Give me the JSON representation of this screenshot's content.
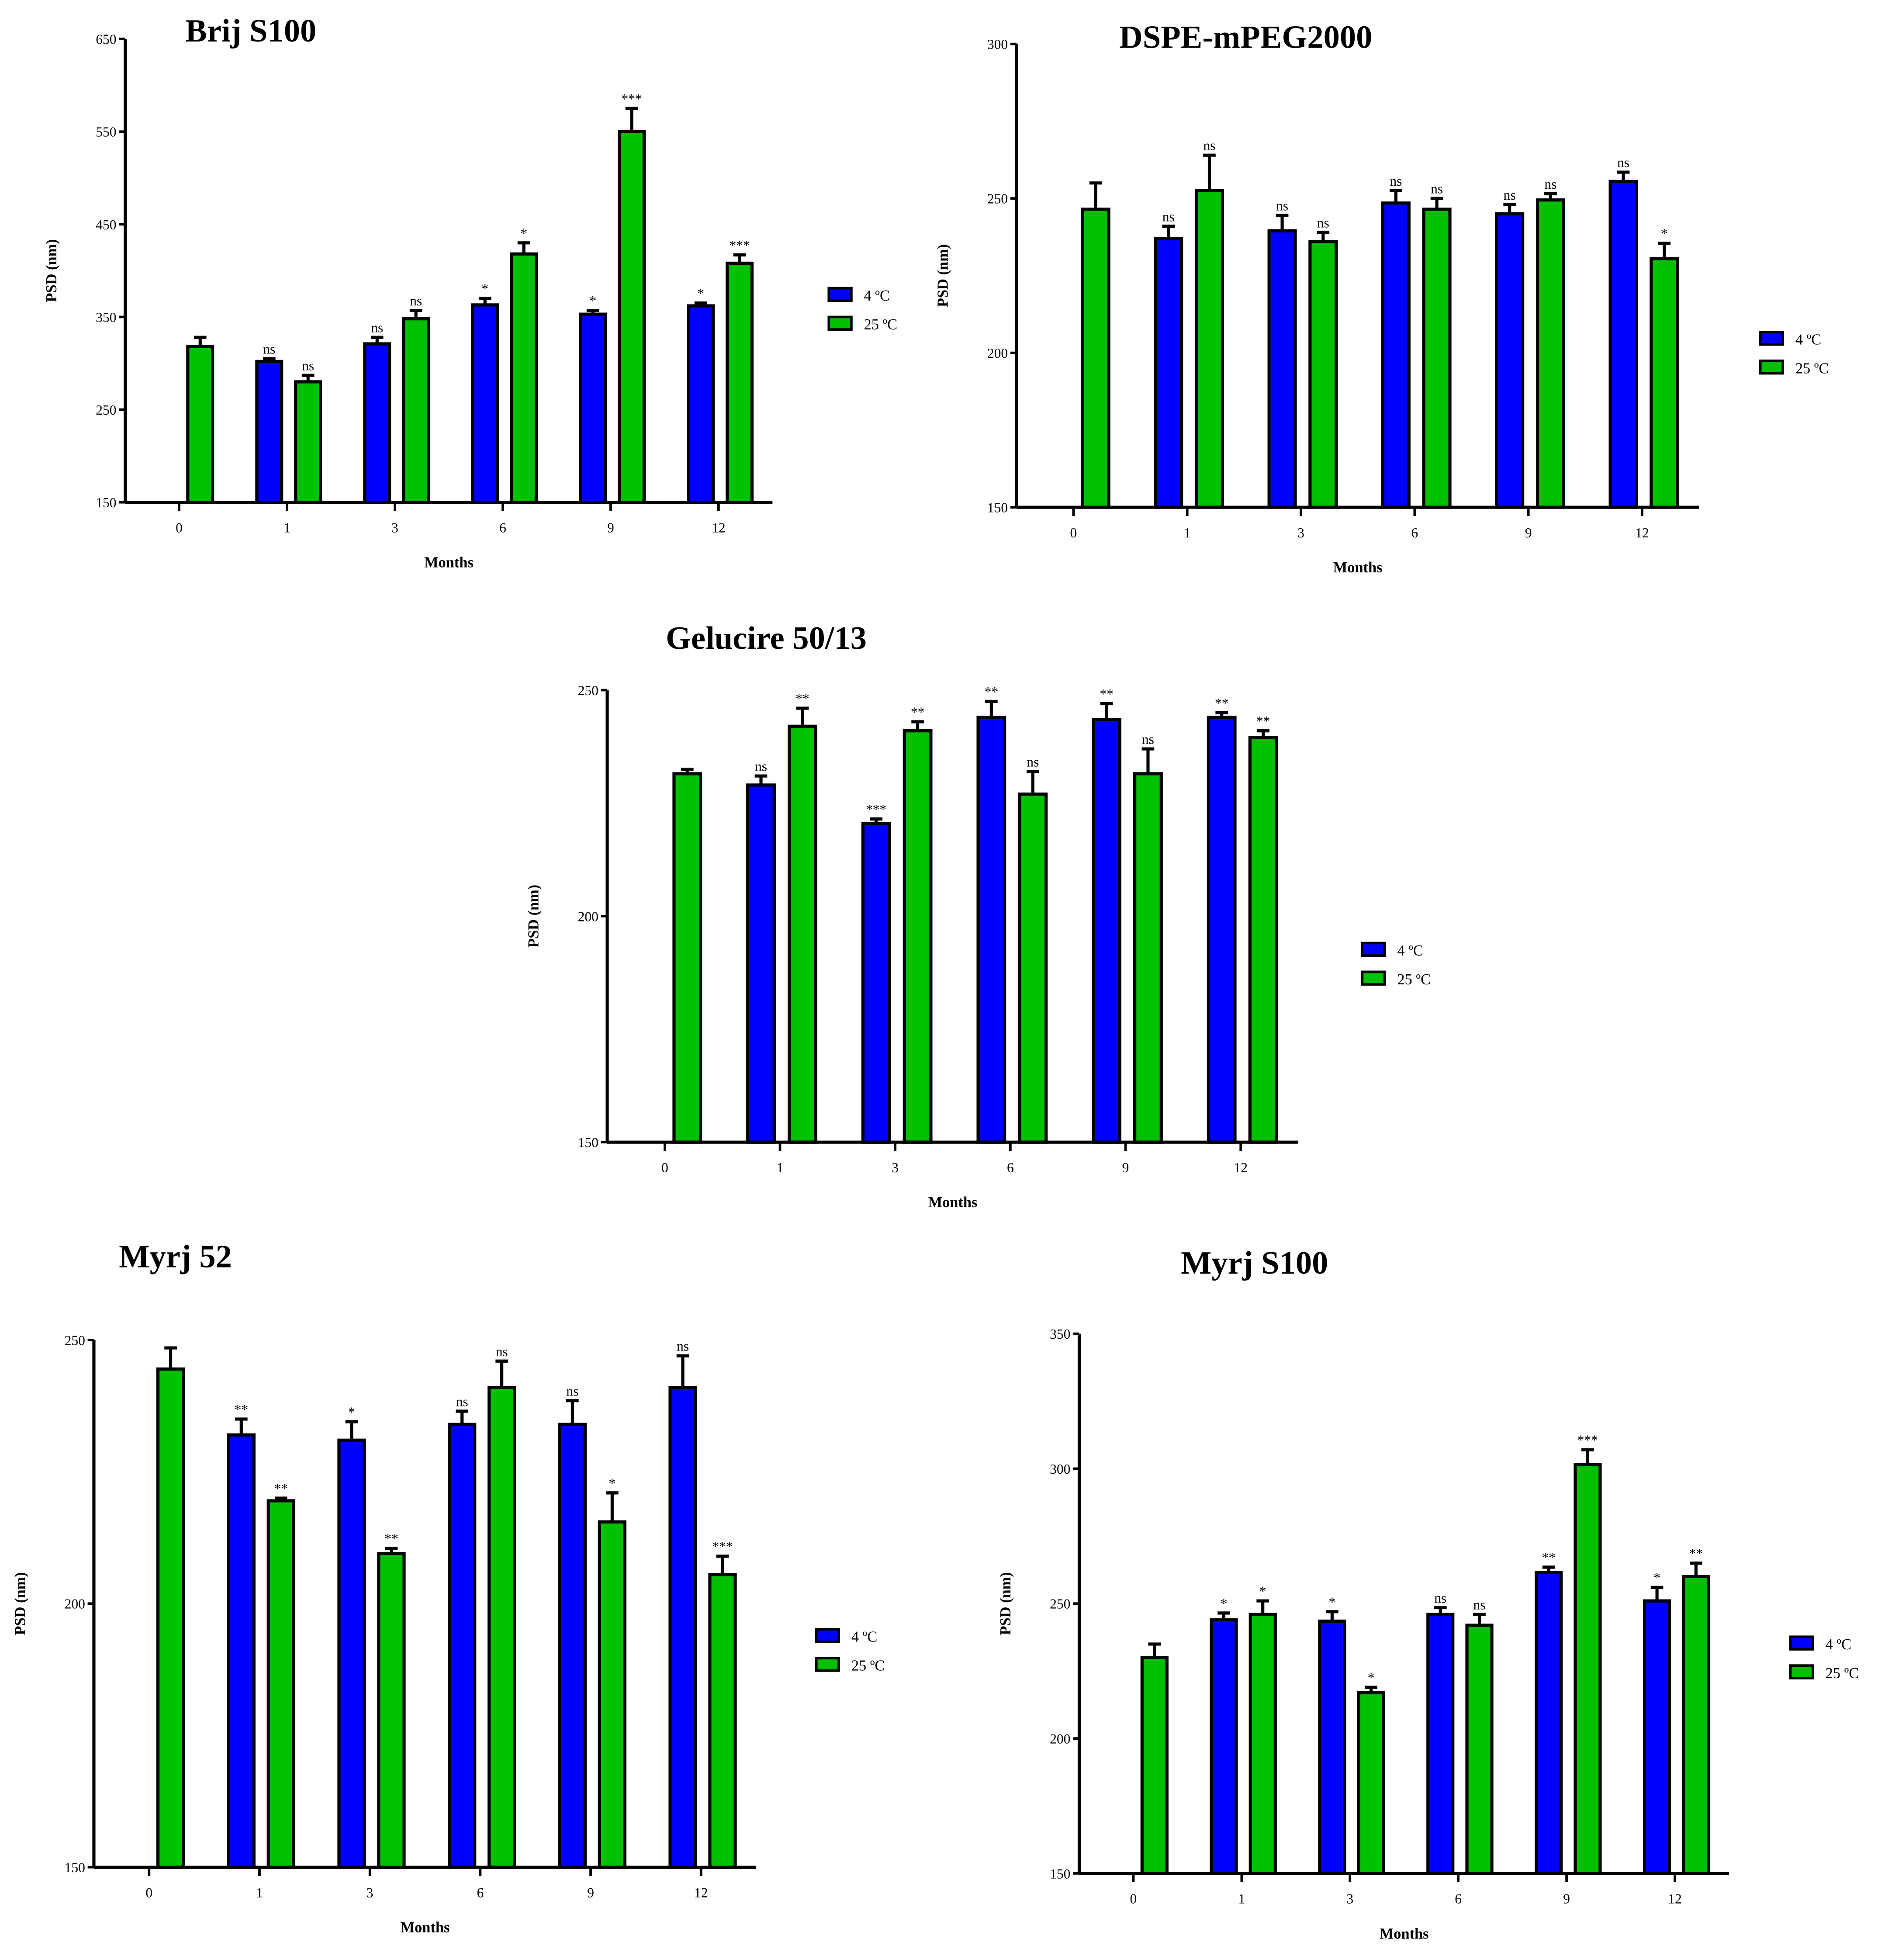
{
  "colors": {
    "4C": "#0000ff",
    "25C": "#00c000",
    "outline": "#000000"
  },
  "chart_data": [
    {
      "type": "bar",
      "title": "Brij S100",
      "xlabel": "Months",
      "ylabel": "PSD (nm)",
      "categories": [
        "0",
        "1",
        "3",
        "6",
        "9",
        "12"
      ],
      "ylim": [
        150,
        650
      ],
      "yticks": [
        150,
        250,
        350,
        450,
        550,
        650
      ],
      "legend_position": "right",
      "grid": false,
      "series": [
        {
          "name": "4 ºC",
          "values": [
            null,
            302,
            321,
            363,
            353,
            362
          ],
          "errors": [
            null,
            3,
            7,
            7,
            4,
            3
          ],
          "annotations": [
            "",
            "ns",
            "ns",
            "*",
            "*",
            "*"
          ]
        },
        {
          "name": "25 ºC",
          "values": [
            318,
            280,
            348,
            418,
            550,
            408
          ],
          "errors": [
            10,
            7,
            9,
            12,
            25,
            9
          ],
          "annotations": [
            "",
            "ns",
            "ns",
            "*",
            "***",
            "***"
          ]
        }
      ]
    },
    {
      "type": "bar",
      "title": "DSPE-mPEG2000",
      "xlabel": "Months",
      "ylabel": "PSD (nm)",
      "categories": [
        "0",
        "1",
        "3",
        "6",
        "9",
        "12"
      ],
      "ylim": [
        150,
        300
      ],
      "yticks": [
        150,
        200,
        250,
        300
      ],
      "legend_position": "right",
      "grid": false,
      "series": [
        {
          "name": "4 ºC",
          "values": [
            null,
            237,
            239.5,
            248.5,
            245,
            255.5
          ],
          "errors": [
            null,
            4,
            5,
            4,
            3,
            3
          ],
          "annotations": [
            "",
            "ns",
            "ns",
            "ns",
            "ns",
            "ns"
          ]
        },
        {
          "name": "25 ºC",
          "values": [
            246.5,
            252.5,
            236,
            246.5,
            249.5,
            230.5
          ],
          "errors": [
            8.5,
            11.5,
            3,
            3.5,
            2,
            5
          ],
          "annotations": [
            "",
            "ns",
            "ns",
            "ns",
            "ns",
            "*"
          ]
        }
      ]
    },
    {
      "type": "bar",
      "title": "Gelucire 50/13",
      "xlabel": "Months",
      "ylabel": "PSD (nm)",
      "categories": [
        "0",
        "1",
        "3",
        "6",
        "9",
        "12"
      ],
      "ylim": [
        150,
        250
      ],
      "yticks": [
        150,
        200,
        250
      ],
      "legend_position": "right",
      "grid": false,
      "series": [
        {
          "name": "4 ºC",
          "values": [
            null,
            229,
            220.5,
            244,
            243.5,
            244
          ],
          "errors": [
            null,
            2,
            1,
            3.5,
            3.5,
            1
          ],
          "annotations": [
            "",
            "ns",
            "***",
            "**",
            "**",
            "**"
          ]
        },
        {
          "name": "25 ºC",
          "values": [
            231.5,
            242,
            241,
            227,
            231.5,
            239.5
          ],
          "errors": [
            1,
            4,
            2,
            5,
            5.5,
            1.5
          ],
          "annotations": [
            "",
            "**",
            "**",
            "ns",
            "ns",
            "**"
          ]
        }
      ]
    },
    {
      "type": "bar",
      "title": "Myrj 52",
      "xlabel": "Months",
      "ylabel": "PSD (nm)",
      "categories": [
        "0",
        "1",
        "3",
        "6",
        "9",
        "12"
      ],
      "ylim": [
        150,
        250
      ],
      "yticks": [
        150,
        200,
        250
      ],
      "legend_position": "right",
      "grid": false,
      "series": [
        {
          "name": "4 ºC",
          "values": [
            null,
            232,
            231,
            234,
            234,
            241
          ],
          "errors": [
            null,
            3,
            3.5,
            2.5,
            4.5,
            6
          ],
          "annotations": [
            "",
            "**",
            "*",
            "ns",
            "ns",
            "ns"
          ]
        },
        {
          "name": "25 ºC",
          "values": [
            244.5,
            219.5,
            209.5,
            241,
            215.5,
            205.5
          ],
          "errors": [
            4,
            0.5,
            1,
            5,
            5.5,
            3.5
          ],
          "annotations": [
            "",
            "**",
            "**",
            "ns",
            "*",
            "***"
          ]
        }
      ]
    },
    {
      "type": "bar",
      "title": "Myrj S100",
      "xlabel": "Months",
      "ylabel": "PSD (nm)",
      "categories": [
        "0",
        "1",
        "3",
        "6",
        "9",
        "12"
      ],
      "ylim": [
        150,
        350
      ],
      "yticks": [
        150,
        200,
        250,
        300,
        350
      ],
      "legend_position": "right",
      "grid": false,
      "series": [
        {
          "name": "4 ºC",
          "values": [
            null,
            244,
            243.5,
            246,
            261.5,
            251
          ],
          "errors": [
            null,
            2.5,
            3.5,
            2.5,
            2,
            5
          ],
          "annotations": [
            "",
            "*",
            "*",
            "ns",
            "**",
            "*"
          ]
        },
        {
          "name": "25 ºC",
          "values": [
            230,
            246,
            217,
            242,
            301.5,
            260
          ],
          "errors": [
            5,
            5,
            2,
            4,
            5.5,
            5
          ],
          "annotations": [
            "",
            "*",
            "*",
            "ns",
            "***",
            "**"
          ]
        }
      ]
    }
  ]
}
